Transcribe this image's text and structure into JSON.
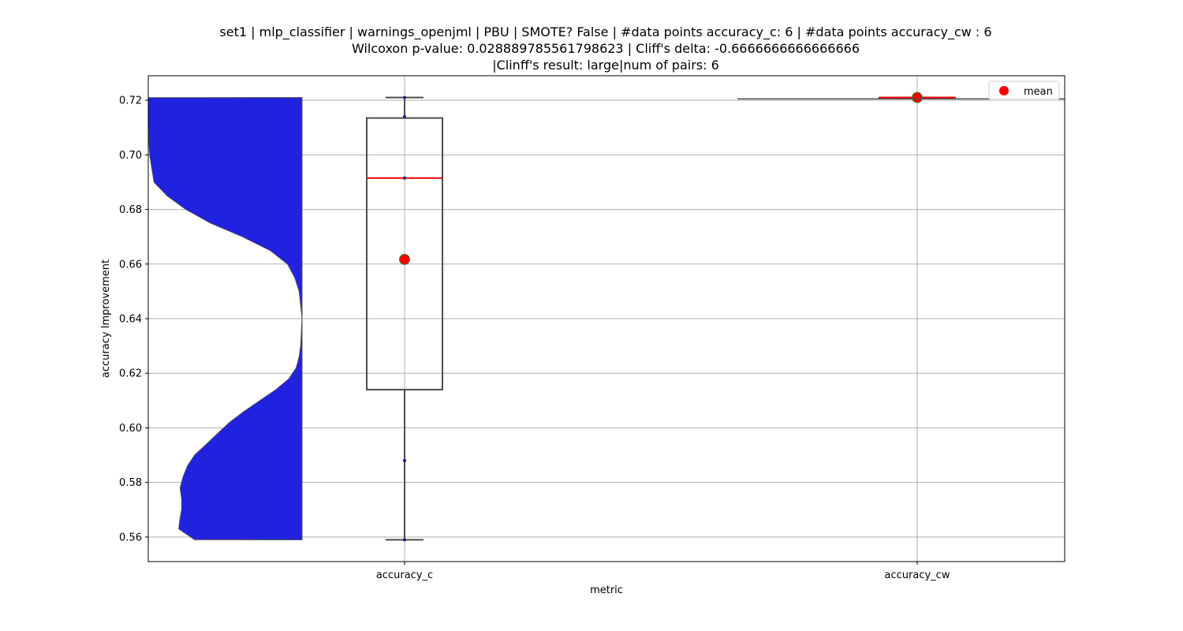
{
  "chart_data": {
    "type": "box",
    "title_lines": [
      "set1 | mlp_classifier | warnings_openjml | PBU | SMOTE? False | #data points accuracy_c: 6 | #data points accuracy_cw : 6",
      "Wilcoxon p-value: 0.028889785561798623 | Cliff's delta: -0.6666666666666666",
      "|Clinff's result: large|num of pairs: 6"
    ],
    "xlabel": "metric",
    "ylabel": "accuracy Improvement",
    "categories": [
      "accuracy_c",
      "accuracy_cw"
    ],
    "ylim": [
      0.551,
      0.729
    ],
    "yticks": [
      0.56,
      0.58,
      0.6,
      0.62,
      0.64,
      0.66,
      0.68,
      0.7,
      0.72
    ],
    "grid": true,
    "legend": {
      "position": "top-right",
      "entries": [
        {
          "label": "mean",
          "color": "#ff0000"
        }
      ]
    },
    "colors": {
      "violin": "#2121e0",
      "median": "#ff0000",
      "mean": "#ff0000",
      "mean_edge": "#2e8b2e",
      "box_edge": "#4d4d4d"
    },
    "boxes": [
      {
        "category": "accuracy_c",
        "whisker_low": 0.559,
        "q1": 0.614,
        "median": 0.6915,
        "q3": 0.7135,
        "whisker_high": 0.721,
        "mean": 0.6617,
        "points": [
          0.559,
          0.588,
          0.6915,
          0.6915,
          0.714,
          0.721
        ]
      },
      {
        "category": "accuracy_cw",
        "whisker_low": 0.721,
        "q1": 0.721,
        "median": 0.721,
        "q3": 0.721,
        "whisker_high": 0.721,
        "mean": 0.721,
        "points": [
          0.721,
          0.721,
          0.721,
          0.721,
          0.721,
          0.721
        ]
      }
    ],
    "violin": {
      "category": "accuracy_c",
      "side": "left",
      "profile": [
        [
          0.559,
          0.74
        ],
        [
          0.563,
          0.85
        ],
        [
          0.567,
          0.84
        ],
        [
          0.57,
          0.83
        ],
        [
          0.574,
          0.83
        ],
        [
          0.578,
          0.84
        ],
        [
          0.582,
          0.82
        ],
        [
          0.586,
          0.79
        ],
        [
          0.59,
          0.74
        ],
        [
          0.594,
          0.66
        ],
        [
          0.598,
          0.58
        ],
        [
          0.602,
          0.5
        ],
        [
          0.606,
          0.4
        ],
        [
          0.61,
          0.29
        ],
        [
          0.614,
          0.18
        ],
        [
          0.618,
          0.09
        ],
        [
          0.622,
          0.04
        ],
        [
          0.626,
          0.02
        ],
        [
          0.63,
          0.01
        ],
        [
          0.64,
          0.0
        ],
        [
          0.65,
          0.02
        ],
        [
          0.655,
          0.05
        ],
        [
          0.66,
          0.1
        ],
        [
          0.665,
          0.22
        ],
        [
          0.67,
          0.41
        ],
        [
          0.675,
          0.63
        ],
        [
          0.68,
          0.8
        ],
        [
          0.685,
          0.93
        ],
        [
          0.69,
          1.02
        ],
        [
          0.7,
          1.05
        ],
        [
          0.71,
          1.06
        ],
        [
          0.721,
          1.06
        ]
      ]
    }
  }
}
